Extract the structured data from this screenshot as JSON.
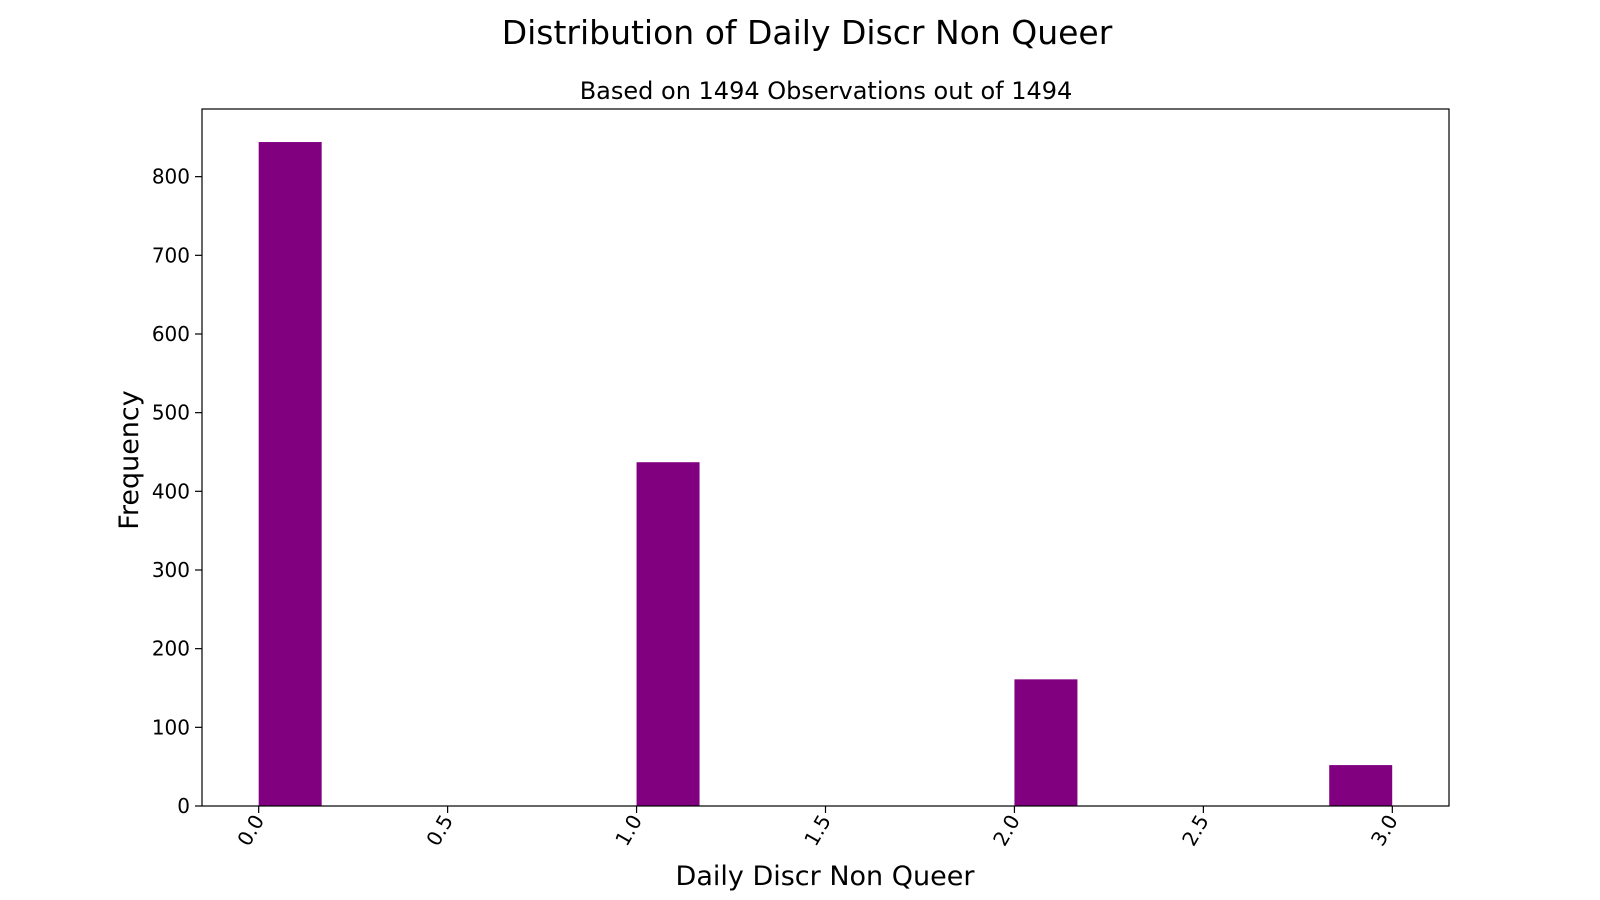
{
  "chart_data": {
    "type": "bar",
    "title": "Distribution of Daily Discr Non Queer",
    "subtitle": "Based on 1494 Observations out of 1494",
    "xlabel": "Daily Discr Non Queer",
    "ylabel": "Frequency",
    "x": [
      0,
      1,
      2,
      2.833
    ],
    "values": [
      844,
      437,
      161,
      52
    ],
    "bin_width": 0.1667,
    "xlim": [
      -0.15,
      3.15
    ],
    "ylim": [
      0,
      886
    ],
    "x_ticks": [
      "0.0",
      "0.5",
      "1.0",
      "1.5",
      "2.0",
      "2.5",
      "3.0"
    ],
    "y_ticks": [
      "0",
      "100",
      "200",
      "300",
      "400",
      "500",
      "600",
      "700",
      "800"
    ],
    "bar_color": "#800080",
    "grid": false,
    "legend": "none"
  }
}
